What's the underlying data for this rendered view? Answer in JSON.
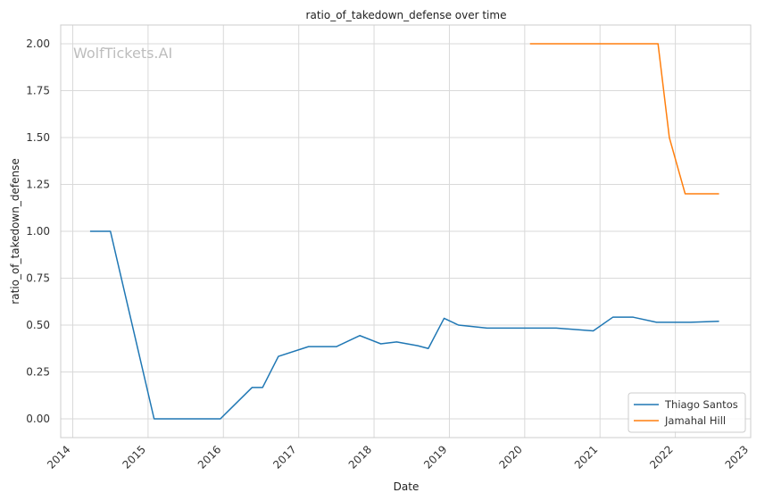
{
  "chart_data": {
    "type": "line",
    "title": "ratio_of_takedown_defense over time",
    "xlabel": "Date",
    "ylabel": "ratio_of_takedown_defense",
    "watermark": "WolfTickets.AI",
    "xlim": [
      2013.84,
      2023.0
    ],
    "ylim": [
      -0.1,
      2.1
    ],
    "x_ticks": [
      2014,
      2015,
      2016,
      2017,
      2018,
      2019,
      2020,
      2021,
      2022,
      2023
    ],
    "x_tick_labels": [
      "2014",
      "2015",
      "2016",
      "2017",
      "2018",
      "2019",
      "2020",
      "2021",
      "2022",
      "2023"
    ],
    "y_ticks": [
      0.0,
      0.25,
      0.5,
      0.75,
      1.0,
      1.25,
      1.5,
      1.75,
      2.0
    ],
    "y_tick_labels": [
      "0.00",
      "0.25",
      "0.50",
      "0.75",
      "1.00",
      "1.25",
      "1.50",
      "1.75",
      "2.00"
    ],
    "grid": true,
    "legend_position": "bottom-right",
    "series": [
      {
        "name": "Thiago Santos",
        "color": "#1f77b4",
        "points": [
          [
            2014.23,
            1.0
          ],
          [
            2014.5,
            1.0
          ],
          [
            2015.08,
            0.0
          ],
          [
            2015.5,
            0.0
          ],
          [
            2015.96,
            0.0
          ],
          [
            2016.38,
            0.167
          ],
          [
            2016.52,
            0.167
          ],
          [
            2016.73,
            0.333
          ],
          [
            2017.13,
            0.385
          ],
          [
            2017.5,
            0.385
          ],
          [
            2017.81,
            0.444
          ],
          [
            2018.09,
            0.4
          ],
          [
            2018.3,
            0.41
          ],
          [
            2018.58,
            0.39
          ],
          [
            2018.72,
            0.375
          ],
          [
            2018.93,
            0.536
          ],
          [
            2019.12,
            0.5
          ],
          [
            2019.5,
            0.484
          ],
          [
            2020.0,
            0.484
          ],
          [
            2020.42,
            0.484
          ],
          [
            2020.91,
            0.469
          ],
          [
            2021.17,
            0.542
          ],
          [
            2021.44,
            0.542
          ],
          [
            2021.75,
            0.515
          ],
          [
            2022.0,
            0.515
          ],
          [
            2022.2,
            0.515
          ],
          [
            2022.58,
            0.52
          ]
        ]
      },
      {
        "name": "Jamahal Hill",
        "color": "#ff7f0e",
        "points": [
          [
            2020.07,
            2.0
          ],
          [
            2020.5,
            2.0
          ],
          [
            2021.0,
            2.0
          ],
          [
            2021.5,
            2.0
          ],
          [
            2021.77,
            2.0
          ],
          [
            2021.92,
            1.5
          ],
          [
            2022.13,
            1.2
          ],
          [
            2022.4,
            1.2
          ],
          [
            2022.58,
            1.2
          ]
        ]
      }
    ]
  }
}
